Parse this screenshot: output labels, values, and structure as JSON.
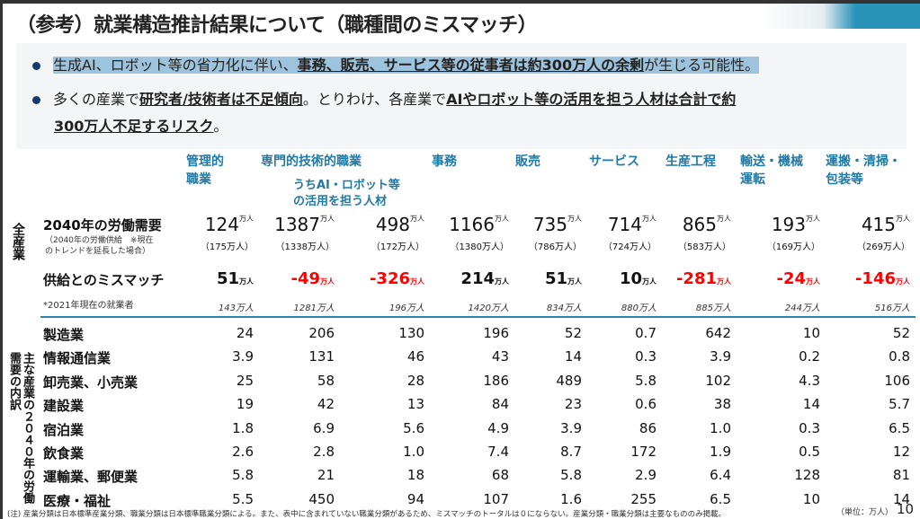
{
  "title": "（参考）就業構造推計結果について（職種間のミスマッチ）",
  "bullets": [
    {
      "pre": "生成AI、ロボット等の省力化に伴い、",
      "em": "事務、販売、サービス等の従事者は約300万人の余剰",
      "post": "が生じる可能性。"
    },
    {
      "pre": "多くの産業で",
      "em": "研究者/技術者は不足傾向",
      "mid": "。とりわけ、各産業で",
      "em2": "AIやロボット等の活用を担う人材は合計で約",
      "em3": "300万人不足するリスク",
      "post": "。"
    }
  ],
  "columns": [
    "管理的\n職業",
    "専門的技術的職業",
    "",
    "事務",
    "販売",
    "サービス",
    "生産工程",
    "輸送・機械\n運転",
    "運搬・清掃・\n包装等"
  ],
  "sub_column": "うちAI・ロボット等\nの活用を担う人材",
  "unit": "万人",
  "all_industry_label": "全産業",
  "demand": {
    "label": "2040年の労働需要",
    "note": "（2040年の労働供給　※現在\nのトレンドを延長した場合）",
    "values": [
      "124",
      "1387",
      "498",
      "1166",
      "735",
      "714",
      "865",
      "193",
      "415"
    ],
    "supply": [
      "（175万人）",
      "（1338万人）",
      "（172万人）",
      "（1380万人）",
      "（786万人）",
      "（724万人）",
      "（583万人）",
      "（169万人）",
      "（269万人）"
    ]
  },
  "mismatch": {
    "label": "供給とのミスマッチ",
    "values": [
      "51",
      "-49",
      "-326",
      "214",
      "51",
      "10",
      "-281",
      "-24",
      "-146"
    ]
  },
  "employed_2021": {
    "label": "*2021年現在の就業者",
    "values": [
      "143万人",
      "1281万人",
      "196万人",
      "1420万人",
      "834万人",
      "880万人",
      "885万人",
      "244万人",
      "516万人"
    ]
  },
  "breakdown_label": "主な産業の２０４０年の労働需要の内訳",
  "industries": [
    {
      "name": "製造業",
      "values": [
        "24",
        "206",
        "130",
        "196",
        "52",
        "0.7",
        "642",
        "10",
        "52"
      ]
    },
    {
      "name": "情報通信業",
      "values": [
        "3.9",
        "131",
        "46",
        "43",
        "14",
        "0.3",
        "3.9",
        "0.2",
        "0.8"
      ]
    },
    {
      "name": "卸売業、小売業",
      "values": [
        "25",
        "58",
        "28",
        "186",
        "489",
        "5.8",
        "102",
        "4.3",
        "106"
      ]
    },
    {
      "name": "建設業",
      "values": [
        "19",
        "42",
        "13",
        "84",
        "23",
        "0.6",
        "38",
        "14",
        "5.7"
      ]
    },
    {
      "name": "宿泊業",
      "values": [
        "1.8",
        "6.9",
        "5.6",
        "4.9",
        "3.9",
        "86",
        "1.0",
        "0.3",
        "6.5"
      ]
    },
    {
      "name": "飲食業",
      "values": [
        "2.6",
        "2.8",
        "1.0",
        "7.4",
        "8.7",
        "172",
        "1.9",
        "0.5",
        "12"
      ]
    },
    {
      "name": "運輸業、郵便業",
      "values": [
        "5.8",
        "21",
        "18",
        "68",
        "5.8",
        "2.9",
        "6.4",
        "128",
        "81"
      ]
    },
    {
      "name": "医療・福祉",
      "values": [
        "5.5",
        "450",
        "94",
        "107",
        "1.6",
        "255",
        "6.5",
        "10",
        "14"
      ]
    }
  ],
  "footnote": "(注) 産業分類は日本標準産業分類、職業分類は日本標準職業分類による。また、表中に含まれていない職業分類があるため、ミスマッチのトータルは０にならない。産業分類・職業分類は主要なもののみ掲載。",
  "unit_label": "（単位：万人）",
  "page_number": "10",
  "colors": {
    "accent": "#1f7aa6",
    "negative": "#ff0000"
  }
}
